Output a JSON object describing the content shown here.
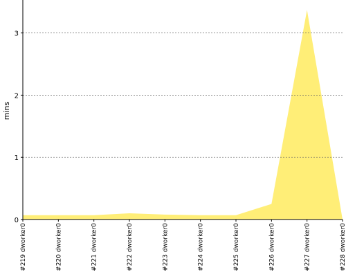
{
  "chart_data": {
    "type": "area",
    "y_label": "mins",
    "categories": [
      "#219 dworker0",
      "#220 dworker0",
      "#221 dworker0",
      "#222 dworker0",
      "#223 dworker0",
      "#224 dworker0",
      "#225 dworker0",
      "#226 dworker0",
      "#227 dworker0",
      "#228 dworker0"
    ],
    "values": [
      0.07,
      0.07,
      0.07,
      0.1,
      0.08,
      0.07,
      0.07,
      0.25,
      3.37,
      0
    ],
    "color": "#ffee77",
    "ylim": [
      0,
      3.53
    ],
    "yticks": [
      0,
      1,
      2,
      3
    ],
    "grid": true
  }
}
